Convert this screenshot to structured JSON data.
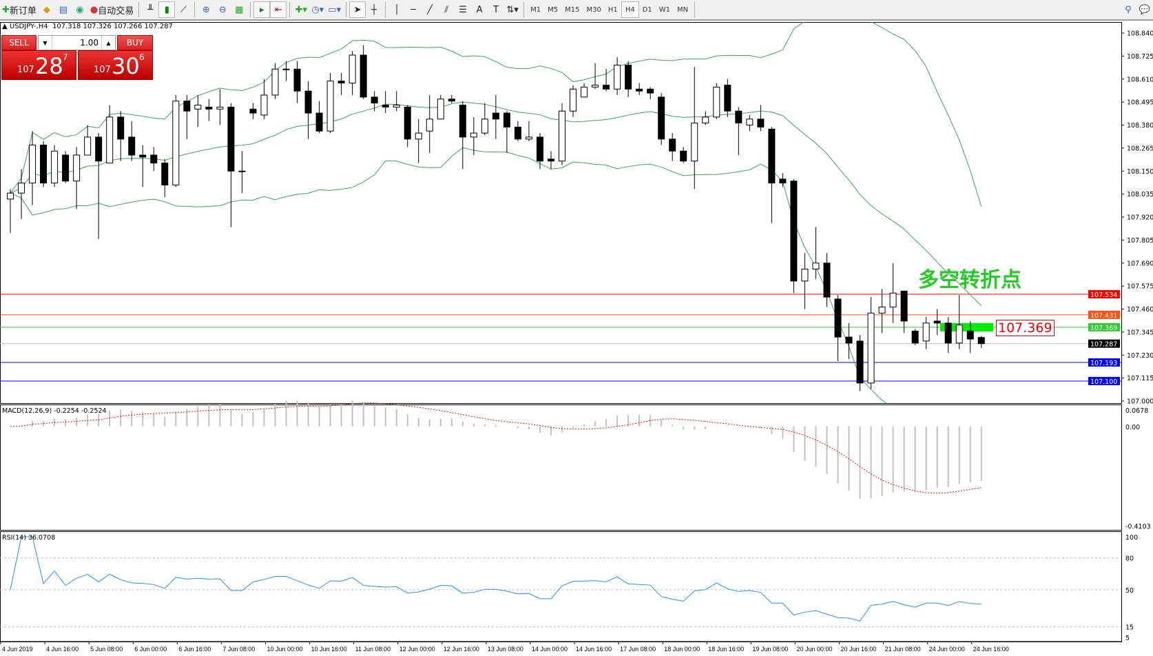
{
  "toolbar": {
    "new_order": "新订单",
    "auto_trading": "自动交易",
    "timeframes": [
      "M1",
      "M5",
      "M15",
      "M30",
      "H1",
      "H4",
      "D1",
      "W1",
      "MN"
    ],
    "active_timeframe": "H4"
  },
  "header": {
    "symbol": "USDJPY-,H4",
    "ohlc": "107.318 107.326 107.266 107.287"
  },
  "trade": {
    "sell": "SELL",
    "buy": "BUY",
    "lots": "1.00",
    "sell_price": {
      "prefix": "107",
      "big": "28",
      "pip": "7"
    },
    "buy_price": {
      "prefix": "107",
      "big": "30",
      "pip": "6"
    }
  },
  "annotation": {
    "text": "多空转折点",
    "color": "#22cc22",
    "level_label": "107.369"
  },
  "price_axis": {
    "ticks": [
      "108.840",
      "108.725",
      "108.610",
      "108.495",
      "108.380",
      "108.265",
      "108.150",
      "108.035",
      "107.920",
      "107.805",
      "107.690",
      "107.575",
      "107.460",
      "107.345",
      "107.230",
      "107.115",
      "107.000"
    ]
  },
  "levels": [
    {
      "price": 107.534,
      "label": "107.534",
      "color": "#ff0000"
    },
    {
      "price": 107.431,
      "label": "107.431",
      "color": "#ff5010"
    },
    {
      "price": 107.369,
      "label": "107.369",
      "color": "#33cc33"
    },
    {
      "price": 107.287,
      "label": "107.287",
      "color": "#000000",
      "line": "#c0c0c0"
    },
    {
      "price": 107.193,
      "label": "107.193",
      "color": "#0000ff"
    },
    {
      "price": 107.1,
      "label": "107.100",
      "color": "#0000ff"
    }
  ],
  "macd": {
    "label": "MACD(12,26,9) -0.2254 -0.2524",
    "ticks": [
      "0.0678",
      "0.00",
      "-0.4103"
    ],
    "signal_color": "#ff0000",
    "hist_color": "#c0c0c0"
  },
  "rsi": {
    "label": "RSI(14) 36.0708",
    "ticks": [
      "100",
      "80",
      "50",
      "15",
      "5"
    ],
    "color": "#1e90ff"
  },
  "time_axis": [
    "4 Jun 2019",
    "4 Jun 16:00",
    "5 Jun 08:00",
    "6 Jun 00:00",
    "6 Jun 16:00",
    "7 Jun 08:00",
    "10 Jun 00:00",
    "10 Jun 16:00",
    "11 Jun 08:00",
    "12 Jun 00:00",
    "12 Jun 16:00",
    "13 Jun 08:00",
    "14 Jun 00:00",
    "14 Jun 16:00",
    "17 Jun 08:00",
    "18 Jun 00:00",
    "18 Jun 16:00",
    "19 Jun 08:00",
    "20 Jun 00:00",
    "20 Jun 16:00",
    "21 Jun 08:00",
    "24 Jun 00:00",
    "24 Jun 16:00"
  ],
  "chart_data": {
    "type": "candlestick",
    "symbol": "USDJPY",
    "timeframe": "H4",
    "ylim": [
      107.0,
      108.84
    ],
    "bollinger_color": "#33aa55",
    "ohlc": [
      [
        108.01,
        108.06,
        107.84,
        108.04
      ],
      [
        108.04,
        108.16,
        107.91,
        108.09
      ],
      [
        108.09,
        108.35,
        107.98,
        108.28
      ],
      [
        108.28,
        108.3,
        108.07,
        108.09
      ],
      [
        108.09,
        108.28,
        108.07,
        108.25
      ],
      [
        108.23,
        108.25,
        108.09,
        108.1
      ],
      [
        108.1,
        108.27,
        107.96,
        108.23
      ],
      [
        108.23,
        108.38,
        108.23,
        108.32
      ],
      [
        108.32,
        108.34,
        107.81,
        108.2
      ],
      [
        108.19,
        108.48,
        108.19,
        108.42
      ],
      [
        108.42,
        108.45,
        108.2,
        108.31
      ],
      [
        108.32,
        108.4,
        108.2,
        108.23
      ],
      [
        108.23,
        108.28,
        108.07,
        108.22
      ],
      [
        108.23,
        108.27,
        108.15,
        108.19
      ],
      [
        108.19,
        108.21,
        108.02,
        108.08
      ],
      [
        108.08,
        108.53,
        108.07,
        108.5
      ],
      [
        108.5,
        108.53,
        108.31,
        108.45
      ],
      [
        108.46,
        108.53,
        108.37,
        108.48
      ],
      [
        108.47,
        108.51,
        108.4,
        108.46
      ],
      [
        108.46,
        108.56,
        108.38,
        108.47
      ],
      [
        108.47,
        108.49,
        107.87,
        108.15
      ],
      [
        108.15,
        108.25,
        108.04,
        108.15
      ],
      [
        108.46,
        108.49,
        108.41,
        108.44
      ],
      [
        108.43,
        108.61,
        108.41,
        108.53
      ],
      [
        108.53,
        108.69,
        108.51,
        108.66
      ],
      [
        108.66,
        108.7,
        108.6,
        108.66
      ],
      [
        108.66,
        108.7,
        108.49,
        108.55
      ],
      [
        108.55,
        108.6,
        108.31,
        108.44
      ],
      [
        108.44,
        108.5,
        108.34,
        108.35
      ],
      [
        108.35,
        108.64,
        108.34,
        108.6
      ],
      [
        108.6,
        108.64,
        108.53,
        108.59
      ],
      [
        108.59,
        108.75,
        108.53,
        108.73
      ],
      [
        108.73,
        108.78,
        108.51,
        108.52
      ],
      [
        108.52,
        108.55,
        108.45,
        108.49
      ],
      [
        108.48,
        108.55,
        108.44,
        108.47
      ],
      [
        108.47,
        108.55,
        108.45,
        108.48
      ],
      [
        108.47,
        108.48,
        108.27,
        108.31
      ],
      [
        108.31,
        108.41,
        108.19,
        108.34
      ],
      [
        108.35,
        108.53,
        108.24,
        108.41
      ],
      [
        108.41,
        108.53,
        108.41,
        108.51
      ],
      [
        108.51,
        108.53,
        108.49,
        108.5
      ],
      [
        108.48,
        108.5,
        108.16,
        108.32
      ],
      [
        108.32,
        108.42,
        108.23,
        108.34
      ],
      [
        108.34,
        108.49,
        108.33,
        108.41
      ],
      [
        108.44,
        108.53,
        108.31,
        108.41
      ],
      [
        108.44,
        108.45,
        108.24,
        108.37
      ],
      [
        108.37,
        108.4,
        108.3,
        108.31
      ],
      [
        108.31,
        108.4,
        108.3,
        108.32
      ],
      [
        108.32,
        108.34,
        108.16,
        108.2
      ],
      [
        108.21,
        108.25,
        108.16,
        108.2
      ],
      [
        108.2,
        108.49,
        108.18,
        108.45
      ],
      [
        108.45,
        108.58,
        108.42,
        108.56
      ],
      [
        108.52,
        108.59,
        108.52,
        108.57
      ],
      [
        108.57,
        108.69,
        108.56,
        108.58
      ],
      [
        108.58,
        108.66,
        108.55,
        108.56
      ],
      [
        108.56,
        108.72,
        108.53,
        108.68
      ],
      [
        108.68,
        108.7,
        108.52,
        108.56
      ],
      [
        108.56,
        108.59,
        108.53,
        108.55
      ],
      [
        108.56,
        108.57,
        108.51,
        108.54
      ],
      [
        108.52,
        108.54,
        108.28,
        108.31
      ],
      [
        108.31,
        108.34,
        108.2,
        108.25
      ],
      [
        108.25,
        108.27,
        108.19,
        108.2
      ],
      [
        108.2,
        108.67,
        108.06,
        108.39
      ],
      [
        108.39,
        108.45,
        108.38,
        108.42
      ],
      [
        108.42,
        108.59,
        108.41,
        108.57
      ],
      [
        108.58,
        108.61,
        108.42,
        108.45
      ],
      [
        108.45,
        108.47,
        108.23,
        108.39
      ],
      [
        108.38,
        108.43,
        108.35,
        108.41
      ],
      [
        108.41,
        108.48,
        108.35,
        108.37
      ],
      [
        108.36,
        108.37,
        107.89,
        108.09
      ],
      [
        108.11,
        108.14,
        108.07,
        108.09
      ],
      [
        108.1,
        108.11,
        107.54,
        107.6
      ],
      [
        107.6,
        107.74,
        107.46,
        107.66
      ],
      [
        107.66,
        107.87,
        107.61,
        107.69
      ],
      [
        107.69,
        107.74,
        107.47,
        107.52
      ],
      [
        107.51,
        107.53,
        107.2,
        107.32
      ],
      [
        107.32,
        107.39,
        107.21,
        107.29
      ],
      [
        107.3,
        107.33,
        107.05,
        107.09
      ],
      [
        107.09,
        107.52,
        107.06,
        107.44
      ],
      [
        107.44,
        107.56,
        107.34,
        107.47
      ],
      [
        107.47,
        107.69,
        107.39,
        107.54
      ],
      [
        107.55,
        107.55,
        107.34,
        107.4
      ],
      [
        107.35,
        107.36,
        107.28,
        107.29
      ],
      [
        107.3,
        107.42,
        107.26,
        107.39
      ],
      [
        107.4,
        107.46,
        107.33,
        107.39
      ],
      [
        107.39,
        107.42,
        107.24,
        107.29
      ],
      [
        107.29,
        107.53,
        107.26,
        107.38
      ],
      [
        107.35,
        107.4,
        107.24,
        107.31
      ],
      [
        107.318,
        107.326,
        107.266,
        107.287
      ]
    ]
  }
}
